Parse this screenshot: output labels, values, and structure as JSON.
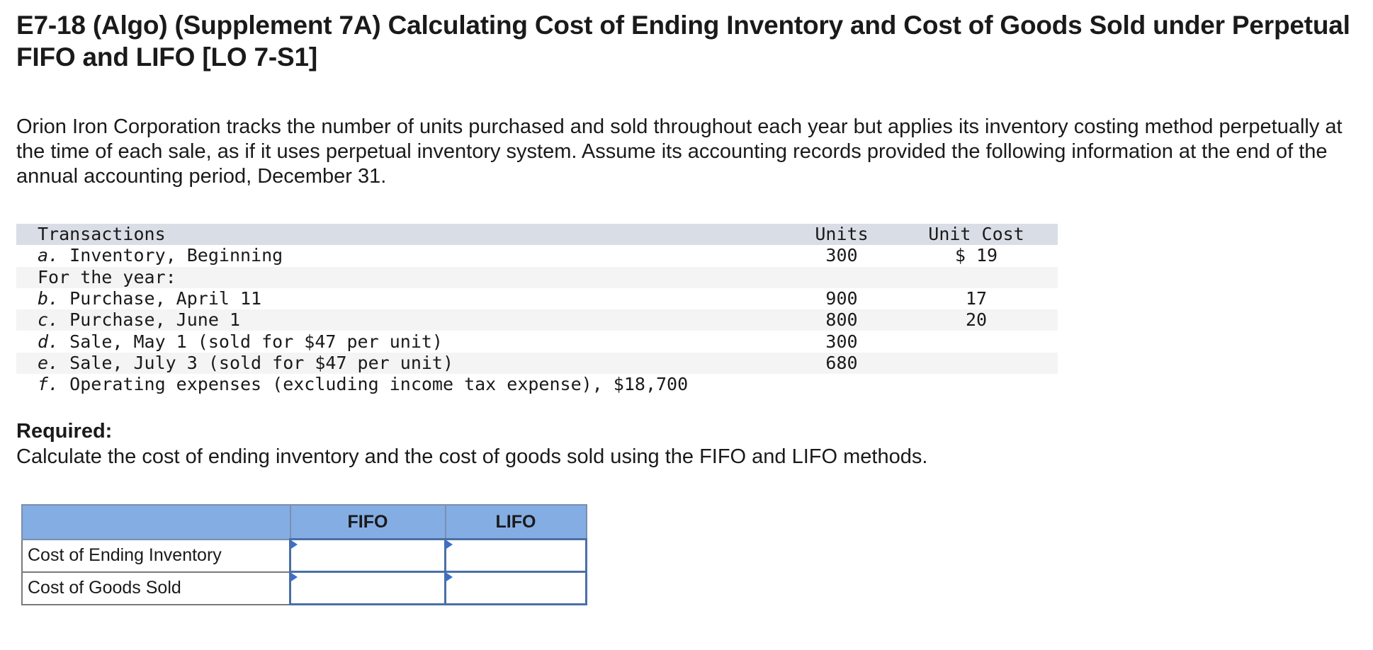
{
  "title": "E7-18 (Algo) (Supplement 7A) Calculating Cost of Ending Inventory and Cost of Goods Sold under Perpetual FIFO and LIFO [LO 7-S1]",
  "intro": "Orion Iron Corporation tracks the number of units purchased and sold throughout each year but applies its inventory costing method perpetually at the time of each sale, as if it uses perpetual inventory system. Assume its accounting records provided the following information at the end of the annual accounting period, December 31.",
  "transactions": {
    "headers": {
      "description": "Transactions",
      "units": "Units",
      "unit_cost": "Unit Cost"
    },
    "rows": [
      {
        "label": "a.",
        "text": "Inventory, Beginning",
        "units": "300",
        "unit_cost": "$ 19"
      },
      {
        "label": "",
        "text": "For the year:",
        "units": "",
        "unit_cost": ""
      },
      {
        "label": "b.",
        "text": "Purchase, April 11",
        "units": "900",
        "unit_cost": "17"
      },
      {
        "label": "c.",
        "text": "Purchase, June 1",
        "units": "800",
        "unit_cost": "20"
      },
      {
        "label": "d.",
        "text": "Sale, May 1 (sold for $47 per unit)",
        "units": "300",
        "unit_cost": ""
      },
      {
        "label": "e.",
        "text": "Sale, July 3 (sold for $47 per unit)",
        "units": "680",
        "unit_cost": ""
      },
      {
        "label": "f.",
        "text": "Operating expenses (excluding income tax expense), $18,700",
        "units": "",
        "unit_cost": ""
      }
    ]
  },
  "required": {
    "heading": "Required:",
    "text": "Calculate the cost of ending inventory and the cost of goods sold using the FIFO and LIFO methods."
  },
  "answer_table": {
    "columns": [
      "",
      "FIFO",
      "LIFO"
    ],
    "rows": [
      {
        "label": "Cost of Ending Inventory",
        "fifo": "",
        "lifo": ""
      },
      {
        "label": "Cost of Goods Sold",
        "fifo": "",
        "lifo": ""
      }
    ]
  },
  "colors": {
    "header_band": "#d9dde6",
    "answer_header": "#84ade3",
    "input_border": "#4a6fa5",
    "marker": "#3a6fcf"
  }
}
